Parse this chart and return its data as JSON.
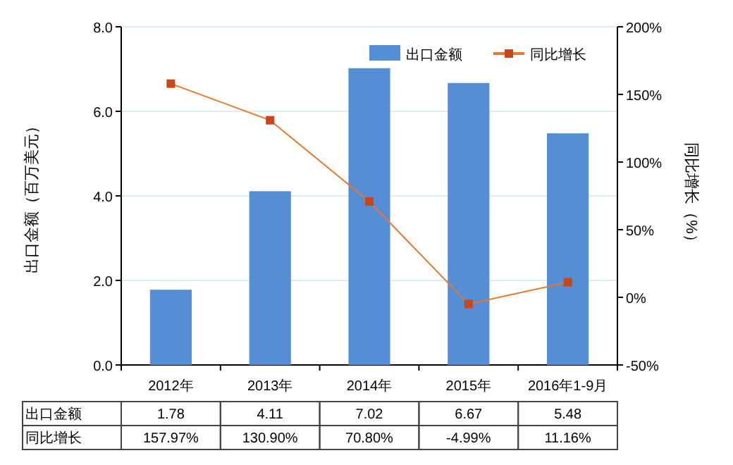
{
  "chart_data": {
    "type": "bar",
    "ylabel": "出口金额（百万美元）",
    "y2label": "同比增长（%）",
    "categories": [
      "2012年",
      "2013年",
      "2014年",
      "2015年",
      "2016年1-9月"
    ],
    "series": [
      {
        "name": "出口金额",
        "color": "#558ed5",
        "values": [
          1.78,
          4.11,
          7.02,
          6.67,
          5.48
        ],
        "value_labels": [
          "1.78",
          "4.11",
          "7.02",
          "6.67",
          "5.48"
        ]
      },
      {
        "name": "同比增长",
        "type": "line",
        "axis": "y2",
        "color": "#e8772e",
        "values": [
          157.97,
          130.9,
          70.8,
          -4.99,
          11.16
        ],
        "value_labels": [
          "157.97%",
          "130.90%",
          "70.80%",
          "-4.99%",
          "11.16%"
        ]
      }
    ],
    "ylim": [
      0,
      8
    ],
    "yticks": [
      {
        "value": 0,
        "label": "0.0"
      },
      {
        "value": 2,
        "label": "2.0"
      },
      {
        "value": 4,
        "label": "4.0"
      },
      {
        "value": 6,
        "label": "6.0"
      },
      {
        "value": 8,
        "label": "8.0"
      }
    ],
    "y2lim": [
      -50,
      200
    ],
    "y2ticks": [
      {
        "value": -50,
        "label": "-50%"
      },
      {
        "value": 0,
        "label": "0%"
      },
      {
        "value": 50,
        "label": "50%"
      },
      {
        "value": 100,
        "label": "100%"
      },
      {
        "value": 150,
        "label": "150%"
      },
      {
        "value": 200,
        "label": "200%"
      }
    ],
    "grid": "y",
    "legend": "top right",
    "marker": "square",
    "line_style": "solid"
  }
}
